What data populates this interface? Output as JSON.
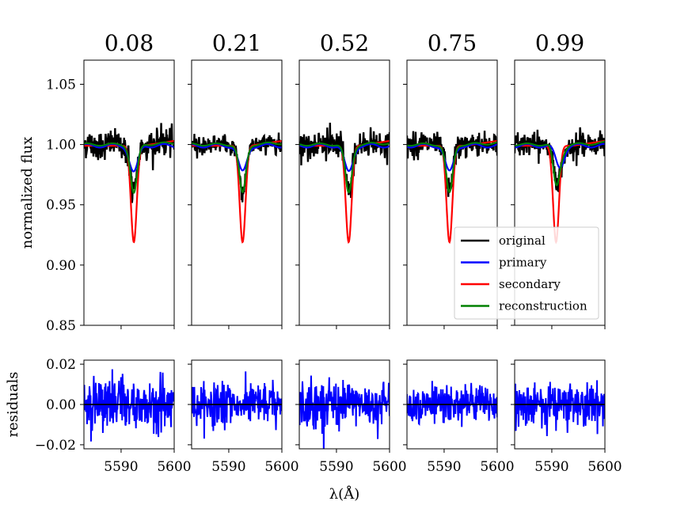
{
  "chart_data": {
    "type": "line",
    "xlabel": "λ(Å)",
    "ylabel_top": "normalized flux",
    "ylabel_bottom": "residuals",
    "xlim": [
      5583,
      5600
    ],
    "xticks": [
      5590,
      5600
    ],
    "xtick_labels": [
      "5590",
      "5600"
    ],
    "top_ylim": [
      0.85,
      1.07
    ],
    "top_yticks": [
      0.85,
      0.9,
      0.95,
      1.0,
      1.05
    ],
    "top_ytick_labels": [
      "0.85",
      "0.90",
      "0.95",
      "1.00",
      "1.05"
    ],
    "bottom_ylim": [
      -0.022,
      0.022
    ],
    "bottom_yticks": [
      -0.02,
      0.0,
      0.02
    ],
    "bottom_ytick_labels": [
      "−0.02",
      "0.00",
      "0.02"
    ],
    "grid": false,
    "legend": {
      "placement": "lower-right of last panel",
      "entries": [
        {
          "name": "original",
          "color": "#000000"
        },
        {
          "name": "primary",
          "color": "#0000ff"
        },
        {
          "name": "secondary",
          "color": "#ff0000"
        },
        {
          "name": "reconstruction",
          "color": "#008000"
        }
      ]
    },
    "panels": [
      {
        "title": "0.08",
        "primary": {
          "center": 5592.4,
          "depth": 0.022,
          "width": 0.8
        },
        "secondary": {
          "center": 5592.4,
          "depth": 0.08,
          "width": 0.55
        },
        "noise": 0.006,
        "residual_amp": 0.007
      },
      {
        "title": "0.21",
        "primary": {
          "center": 5592.6,
          "depth": 0.022,
          "width": 0.8
        },
        "secondary": {
          "center": 5592.6,
          "depth": 0.08,
          "width": 0.55
        },
        "noise": 0.004,
        "residual_amp": 0.005
      },
      {
        "title": "0.52",
        "primary": {
          "center": 5592.3,
          "depth": 0.022,
          "width": 0.8
        },
        "secondary": {
          "center": 5592.3,
          "depth": 0.08,
          "width": 0.55
        },
        "noise": 0.006,
        "residual_amp": 0.006
      },
      {
        "title": "0.75",
        "primary": {
          "center": 5591.0,
          "depth": 0.022,
          "width": 0.8
        },
        "secondary": {
          "center": 5591.0,
          "depth": 0.08,
          "width": 0.55
        },
        "noise": 0.005,
        "residual_amp": 0.005
      },
      {
        "title": "0.99",
        "primary": {
          "center": 5591.5,
          "depth": 0.018,
          "width": 0.8
        },
        "secondary": {
          "center": 5590.8,
          "depth": 0.08,
          "width": 0.55
        },
        "noise": 0.005,
        "residual_amp": 0.005
      }
    ]
  }
}
